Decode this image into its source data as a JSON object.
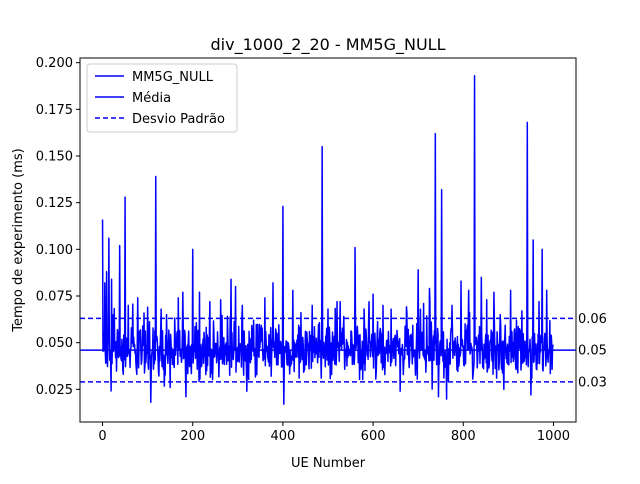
{
  "chart_data": {
    "type": "line",
    "title": "div_1000_2_20 - MM5G_NULL",
    "xlabel": "UE Number",
    "ylabel": "Tempo de experimento (ms)",
    "xlim": [
      -50,
      1050
    ],
    "ylim": [
      0.0075,
      0.2025
    ],
    "xticks": [
      0,
      200,
      400,
      600,
      800,
      1000
    ],
    "yticks": [
      0.025,
      0.05,
      0.075,
      0.1,
      0.125,
      0.15,
      0.175,
      0.2
    ],
    "ytick_labels": [
      "0.025",
      "0.050",
      "0.075",
      "0.100",
      "0.125",
      "0.150",
      "0.175",
      "0.200"
    ],
    "grid": false,
    "legend_placement": "top-left",
    "color": "#0000ff",
    "series": [
      {
        "name": "MM5G_NULL",
        "style": "solid",
        "x_start": 0,
        "x_end": 999,
        "baseline": 0.046,
        "spread": 0.0105,
        "spikes": [
          {
            "x": 0,
            "y": 0.116
          },
          {
            "x": 5,
            "y": 0.082
          },
          {
            "x": 9,
            "y": 0.088
          },
          {
            "x": 14,
            "y": 0.106
          },
          {
            "x": 20,
            "y": 0.084
          },
          {
            "x": 38,
            "y": 0.102
          },
          {
            "x": 50,
            "y": 0.128
          },
          {
            "x": 57,
            "y": 0.07
          },
          {
            "x": 78,
            "y": 0.074
          },
          {
            "x": 100,
            "y": 0.069
          },
          {
            "x": 107,
            "y": 0.018
          },
          {
            "x": 118,
            "y": 0.139
          },
          {
            "x": 130,
            "y": 0.068
          },
          {
            "x": 142,
            "y": 0.065
          },
          {
            "x": 150,
            "y": 0.026
          },
          {
            "x": 168,
            "y": 0.074
          },
          {
            "x": 178,
            "y": 0.077
          },
          {
            "x": 185,
            "y": 0.021
          },
          {
            "x": 200,
            "y": 0.1
          },
          {
            "x": 215,
            "y": 0.077
          },
          {
            "x": 238,
            "y": 0.072
          },
          {
            "x": 262,
            "y": 0.073
          },
          {
            "x": 285,
            "y": 0.084
          },
          {
            "x": 295,
            "y": 0.08
          },
          {
            "x": 310,
            "y": 0.07
          },
          {
            "x": 320,
            "y": 0.024
          },
          {
            "x": 335,
            "y": 0.062
          },
          {
            "x": 360,
            "y": 0.074
          },
          {
            "x": 378,
            "y": 0.082
          },
          {
            "x": 400,
            "y": 0.123
          },
          {
            "x": 402,
            "y": 0.017
          },
          {
            "x": 422,
            "y": 0.078
          },
          {
            "x": 440,
            "y": 0.066
          },
          {
            "x": 465,
            "y": 0.07
          },
          {
            "x": 487,
            "y": 0.155
          },
          {
            "x": 500,
            "y": 0.068
          },
          {
            "x": 520,
            "y": 0.072
          },
          {
            "x": 535,
            "y": 0.064
          },
          {
            "x": 560,
            "y": 0.101
          },
          {
            "x": 580,
            "y": 0.068
          },
          {
            "x": 600,
            "y": 0.076
          },
          {
            "x": 622,
            "y": 0.07
          },
          {
            "x": 640,
            "y": 0.068
          },
          {
            "x": 660,
            "y": 0.024
          },
          {
            "x": 675,
            "y": 0.066
          },
          {
            "x": 700,
            "y": 0.089
          },
          {
            "x": 712,
            "y": 0.071
          },
          {
            "x": 725,
            "y": 0.079
          },
          {
            "x": 738,
            "y": 0.162
          },
          {
            "x": 745,
            "y": 0.021
          },
          {
            "x": 752,
            "y": 0.132
          },
          {
            "x": 775,
            "y": 0.07
          },
          {
            "x": 795,
            "y": 0.083
          },
          {
            "x": 812,
            "y": 0.078
          },
          {
            "x": 825,
            "y": 0.193
          },
          {
            "x": 840,
            "y": 0.085
          },
          {
            "x": 852,
            "y": 0.073
          },
          {
            "x": 868,
            "y": 0.077
          },
          {
            "x": 882,
            "y": 0.065
          },
          {
            "x": 890,
            "y": 0.025
          },
          {
            "x": 905,
            "y": 0.078
          },
          {
            "x": 918,
            "y": 0.062
          },
          {
            "x": 930,
            "y": 0.067
          },
          {
            "x": 942,
            "y": 0.168
          },
          {
            "x": 950,
            "y": 0.022
          },
          {
            "x": 955,
            "y": 0.105
          },
          {
            "x": 968,
            "y": 0.072
          },
          {
            "x": 975,
            "y": 0.1
          },
          {
            "x": 985,
            "y": 0.078
          },
          {
            "x": 995,
            "y": 0.054
          }
        ]
      },
      {
        "name": "Média",
        "style": "solid",
        "y": 0.046
      },
      {
        "name": "Desvio Padrão",
        "style": "dashed",
        "y_upper": 0.063,
        "y_lower": 0.029
      }
    ],
    "annotations": [
      {
        "text": "0.06",
        "y": 0.063
      },
      {
        "text": "0.05",
        "y": 0.046
      },
      {
        "text": "0.03",
        "y": 0.029
      }
    ]
  }
}
